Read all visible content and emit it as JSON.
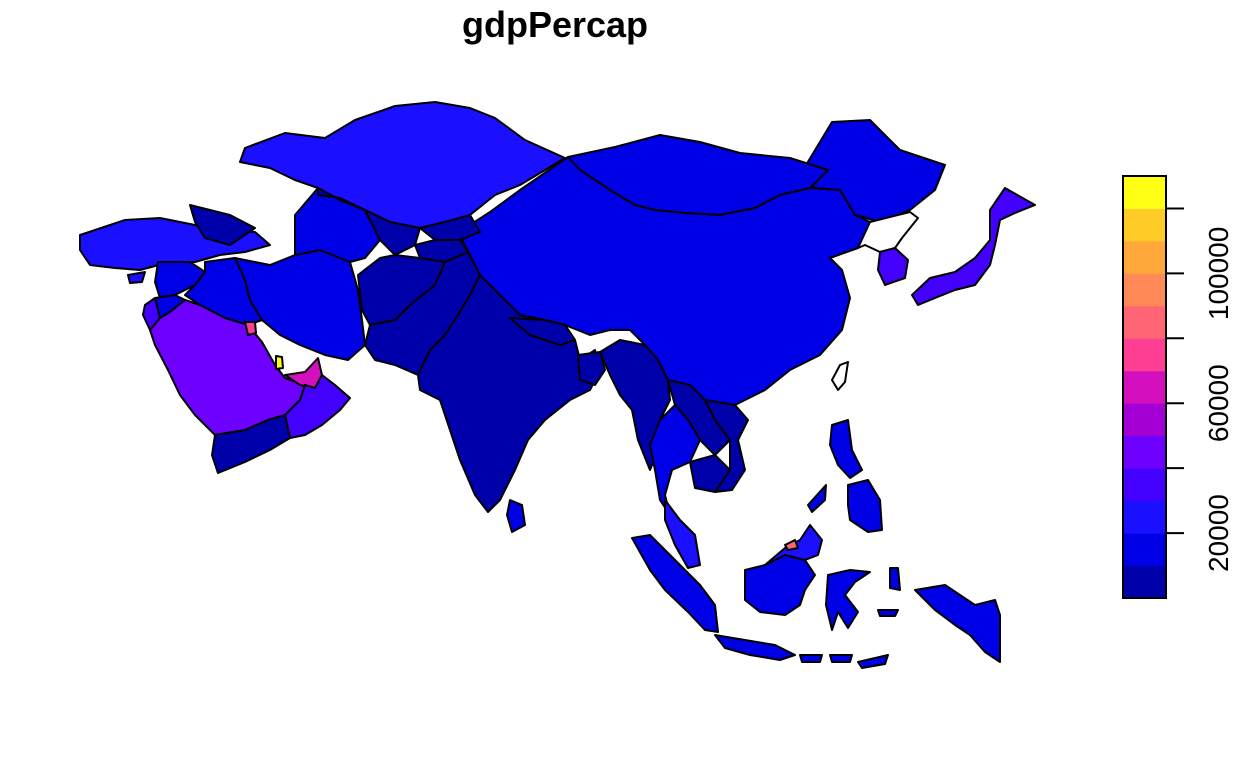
{
  "title": "gdpPercap",
  "legend": {
    "colors": [
      "#0000AA",
      "#0000E6",
      "#1A0FFF",
      "#4400FF",
      "#6E00FF",
      "#A300D6",
      "#D30FBE",
      "#FF3F94",
      "#FF6574",
      "#FF8A57",
      "#FFA839",
      "#FFCB26",
      "#FFFF16"
    ],
    "range": [
      0,
      120000
    ],
    "ticks": [
      {
        "value": 20000,
        "label": "20000"
      },
      {
        "value": 40000,
        "label": ""
      },
      {
        "value": 60000,
        "label": "60000"
      },
      {
        "value": 80000,
        "label": ""
      },
      {
        "value": 100000,
        "label": "100000"
      },
      {
        "value": 120000,
        "label": ""
      }
    ]
  },
  "regions": [
    {
      "name": "Kazakhstan",
      "color": "#1A0FFF"
    },
    {
      "name": "Mongolia",
      "color": "#0000E6"
    },
    {
      "name": "China",
      "color": "#0000E6"
    },
    {
      "name": "Russia-East",
      "color": "#0000E6"
    },
    {
      "name": "Japan",
      "color": "#4400FF"
    },
    {
      "name": "South Korea",
      "color": "#4400FF"
    },
    {
      "name": "North Korea",
      "color": "#FFFFFF"
    },
    {
      "name": "Taiwan",
      "color": "#FFFFFF"
    },
    {
      "name": "Turkey",
      "color": "#1A0FFF"
    },
    {
      "name": "Iran",
      "color": "#0000E6"
    },
    {
      "name": "Iraq",
      "color": "#0000E6"
    },
    {
      "name": "Saudi Arabia",
      "color": "#6E00FF"
    },
    {
      "name": "Oman",
      "color": "#4400FF"
    },
    {
      "name": "United Arab Emirates",
      "color": "#D30FBE"
    },
    {
      "name": "Qatar",
      "color": "#FFFF16"
    },
    {
      "name": "Kuwait",
      "color": "#FF3F94"
    },
    {
      "name": "Yemen",
      "color": "#0000AA"
    },
    {
      "name": "Syria",
      "color": "#0000E6"
    },
    {
      "name": "Jordan",
      "color": "#0000E6"
    },
    {
      "name": "Israel",
      "color": "#4400FF"
    },
    {
      "name": "Cyprus",
      "color": "#1A0FFF"
    },
    {
      "name": "Turkmenistan",
      "color": "#0000E6"
    },
    {
      "name": "Uzbekistan",
      "color": "#0000AA"
    },
    {
      "name": "Kyrgyzstan",
      "color": "#0000AA"
    },
    {
      "name": "Tajikistan",
      "color": "#0000AA"
    },
    {
      "name": "Afghanistan",
      "color": "#0000AA"
    },
    {
      "name": "Pakistan",
      "color": "#0000AA"
    },
    {
      "name": "India",
      "color": "#0000AA"
    },
    {
      "name": "Nepal",
      "color": "#0000AA"
    },
    {
      "name": "Bangladesh",
      "color": "#0000AA"
    },
    {
      "name": "Myanmar",
      "color": "#0000AA"
    },
    {
      "name": "Thailand",
      "color": "#0000E6"
    },
    {
      "name": "Laos",
      "color": "#0000AA"
    },
    {
      "name": "Vietnam",
      "color": "#0000AA"
    },
    {
      "name": "Cambodia",
      "color": "#0000AA"
    },
    {
      "name": "Malaysia",
      "color": "#1A0FFF"
    },
    {
      "name": "Sri Lanka",
      "color": "#0000E6"
    },
    {
      "name": "Sumatra",
      "color": "#0000E6"
    },
    {
      "name": "Java",
      "color": "#0000E6"
    },
    {
      "name": "Borneo",
      "color": "#0000E6"
    },
    {
      "name": "Sabah",
      "color": "#1A0FFF"
    },
    {
      "name": "Brunei",
      "color": "#FF6574"
    },
    {
      "name": "Sulawesi",
      "color": "#0000E6"
    },
    {
      "name": "Philippines",
      "color": "#0000E6"
    },
    {
      "name": "New Guinea",
      "color": "#0000E6"
    },
    {
      "name": "Caucasus",
      "color": "#0000AA"
    }
  ]
}
